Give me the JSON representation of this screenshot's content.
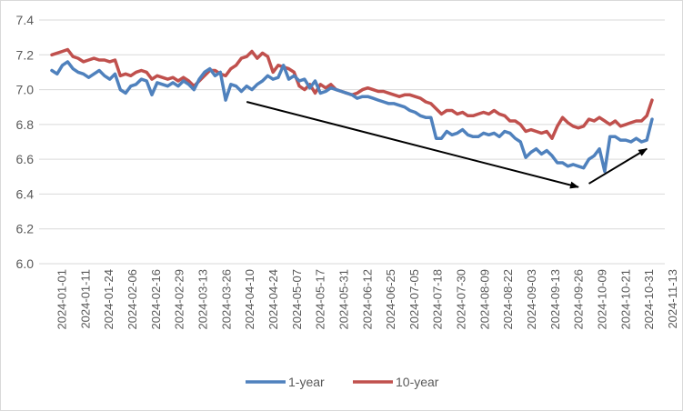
{
  "chart_data": {
    "type": "line",
    "title": "",
    "xlabel": "",
    "ylabel": "",
    "ylim": [
      6.0,
      7.4
    ],
    "yticks": [
      "6.0",
      "6.2",
      "6.4",
      "6.6",
      "6.8",
      "7.0",
      "7.2",
      "7.4"
    ],
    "xticks": [
      "2024-01-01",
      "2024-01-11",
      "2024-01-24",
      "2024-02-06",
      "2024-02-16",
      "2024-02-29",
      "2024-03-13",
      "2024-03-26",
      "2024-04-10",
      "2024-04-24",
      "2024-05-07",
      "2024-05-17",
      "2024-05-31",
      "2024-06-12",
      "2024-06-25",
      "2024-07-05",
      "2024-07-18",
      "2024-07-30",
      "2024-08-09",
      "2024-08-22",
      "2024-09-03",
      "2024-09-13",
      "2024-09-26",
      "2024-10-09",
      "2024-10-21",
      "2024-10-31",
      "2024-11-13"
    ],
    "series": [
      {
        "name": "1-year",
        "color": "#4f81bd",
        "values": [
          7.11,
          7.09,
          7.14,
          7.16,
          7.12,
          7.1,
          7.09,
          7.07,
          7.09,
          7.11,
          7.08,
          7.06,
          7.09,
          7.0,
          6.98,
          7.02,
          7.03,
          7.06,
          7.05,
          6.97,
          7.04,
          7.03,
          7.02,
          7.04,
          7.02,
          7.05,
          7.03,
          7.0,
          7.06,
          7.1,
          7.12,
          7.08,
          7.1,
          6.94,
          7.03,
          7.02,
          6.99,
          7.02,
          7.0,
          7.03,
          7.05,
          7.08,
          7.06,
          7.07,
          7.14,
          7.06,
          7.08,
          7.05,
          7.06,
          7.01,
          7.05,
          6.98,
          6.99,
          7.01,
          7.0,
          6.99,
          6.98,
          6.97,
          6.95,
          6.96,
          6.96,
          6.95,
          6.94,
          6.93,
          6.92,
          6.92,
          6.91,
          6.9,
          6.88,
          6.87,
          6.85,
          6.84,
          6.84,
          6.72,
          6.72,
          6.76,
          6.74,
          6.75,
          6.77,
          6.74,
          6.73,
          6.73,
          6.75,
          6.74,
          6.75,
          6.73,
          6.76,
          6.75,
          6.72,
          6.7,
          6.61,
          6.64,
          6.66,
          6.63,
          6.65,
          6.62,
          6.58,
          6.58,
          6.56,
          6.57,
          6.56,
          6.55,
          6.6,
          6.62,
          6.66,
          6.53,
          6.73,
          6.73,
          6.71,
          6.71,
          6.7,
          6.72,
          6.7,
          6.71,
          6.83
        ]
      },
      {
        "name": "10-year",
        "color": "#c0504d",
        "values": [
          7.2,
          7.21,
          7.22,
          7.23,
          7.19,
          7.18,
          7.16,
          7.17,
          7.18,
          7.17,
          7.17,
          7.16,
          7.17,
          7.08,
          7.09,
          7.08,
          7.1,
          7.11,
          7.1,
          7.06,
          7.08,
          7.07,
          7.06,
          7.07,
          7.05,
          7.07,
          7.05,
          7.02,
          7.05,
          7.08,
          7.11,
          7.11,
          7.09,
          7.08,
          7.12,
          7.14,
          7.18,
          7.19,
          7.22,
          7.18,
          7.21,
          7.19,
          7.1,
          7.14,
          7.13,
          7.12,
          7.1,
          7.02,
          7.0,
          7.03,
          6.98,
          7.03,
          7.01,
          7.03,
          7.0,
          6.99,
          6.98,
          6.97,
          6.98,
          7.0,
          7.01,
          7.0,
          6.99,
          6.99,
          6.98,
          6.97,
          6.96,
          6.97,
          6.97,
          6.96,
          6.95,
          6.93,
          6.92,
          6.89,
          6.86,
          6.88,
          6.88,
          6.86,
          6.87,
          6.85,
          6.85,
          6.86,
          6.87,
          6.86,
          6.88,
          6.86,
          6.85,
          6.82,
          6.82,
          6.8,
          6.76,
          6.77,
          6.76,
          6.75,
          6.76,
          6.72,
          6.79,
          6.84,
          6.81,
          6.79,
          6.78,
          6.79,
          6.83,
          6.82,
          6.84,
          6.82,
          6.8,
          6.82,
          6.79,
          6.8,
          6.81,
          6.82,
          6.82,
          6.85,
          6.94
        ]
      }
    ],
    "legend": [
      "1-year",
      "10-year"
    ],
    "legend_position": "bottom",
    "annotations": [
      {
        "type": "arrow",
        "description": "downward trend arrow",
        "from_index": 37,
        "from_value": 6.93,
        "to_index": 100,
        "to_value": 6.44
      },
      {
        "type": "arrow",
        "description": "upward arrow",
        "from_index": 102,
        "from_value": 6.46,
        "to_index": 113,
        "to_value": 6.66
      }
    ],
    "gridlines": "horizontal",
    "axis_color": "#d9d9d9",
    "text_color": "#595959",
    "arrow_color": "#000000"
  }
}
